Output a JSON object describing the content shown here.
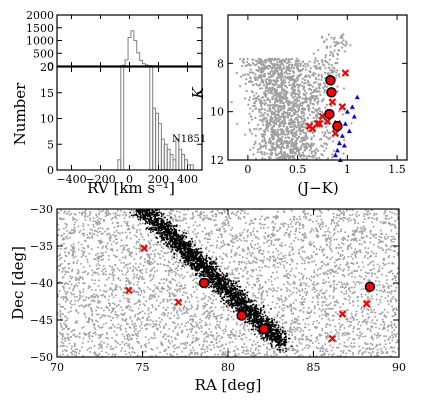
{
  "figure": {
    "colors": {
      "field_stars": "#a0a0a0",
      "stream_stars": "#000000",
      "candidates": "#ff0000",
      "selected_outline": "#000000",
      "dwarfs": "#0000ff",
      "histogram": "#808080"
    }
  },
  "chart_data": [
    {
      "id": "rv-histogram-top",
      "type": "bar",
      "xlim": [
        -500,
        500
      ],
      "ylim": [
        0,
        2000
      ],
      "yticks": [
        "0",
        "500",
        "1000",
        "1500",
        "2000"
      ],
      "bins_center": [
        -60,
        -40,
        -20,
        0,
        20,
        40,
        60,
        80,
        100,
        120,
        140,
        160,
        180,
        200
      ],
      "counts": [
        5,
        30,
        240,
        1120,
        1380,
        1000,
        520,
        220,
        90,
        40,
        20,
        10,
        5,
        2
      ]
    },
    {
      "id": "rv-histogram-bottom",
      "type": "bar",
      "xlabel": "RV [km s⁻¹]",
      "ylabel": "Number",
      "xlim": [
        -500,
        500
      ],
      "ylim": [
        0,
        20
      ],
      "xticks": [
        "−400",
        "−200",
        "0",
        "200",
        "400"
      ],
      "yticks": [
        "0",
        "5",
        "10",
        "15",
        "20"
      ],
      "annotation": "N1851",
      "bins_center": [
        -70,
        -50,
        150,
        170,
        190,
        210,
        230,
        250,
        270,
        290,
        310,
        330,
        350,
        370,
        390,
        410,
        430
      ],
      "counts": [
        2,
        20,
        20,
        12,
        11,
        9,
        6,
        5,
        4,
        3,
        2,
        6,
        4,
        3,
        2,
        1,
        1
      ]
    },
    {
      "id": "color-magnitude",
      "type": "scatter",
      "xlabel": "(J−K)",
      "ylabel": "K",
      "xlim": [
        -0.2,
        1.6
      ],
      "ylim": [
        12,
        6
      ],
      "xticks": [
        "0",
        "0.5",
        "1",
        "1.5"
      ],
      "yticks": [
        "8",
        "10",
        "12"
      ],
      "series": [
        {
          "points": [
            [
              0.98,
              8.4
            ],
            [
              0.85,
              9.6
            ],
            [
              0.75,
              10.2
            ],
            [
              0.72,
              10.5
            ],
            [
              0.8,
              10.4
            ],
            [
              0.62,
              10.6
            ],
            [
              0.9,
              10.5
            ],
            [
              0.95,
              9.8
            ],
            [
              0.88,
              10.9
            ],
            [
              0.7,
              10.5
            ],
            [
              0.65,
              10.7
            ]
          ]
        },
        {
          "points": [
            [
              0.83,
              8.7
            ],
            [
              0.84,
              9.2
            ],
            [
              0.82,
              10.1
            ],
            [
              0.9,
              10.6
            ]
          ]
        },
        {
          "points": [
            [
              1.0,
              10.0
            ],
            [
              1.05,
              9.8
            ],
            [
              0.98,
              10.5
            ],
            [
              0.95,
              11.0
            ],
            [
              0.92,
              11.3
            ],
            [
              0.9,
              11.6
            ],
            [
              1.1,
              9.4
            ],
            [
              1.02,
              10.8
            ],
            [
              0.88,
              11.8
            ],
            [
              0.93,
              12.0
            ],
            [
              1.07,
              10.2
            ],
            [
              0.97,
              11.4
            ]
          ]
        }
      ]
    },
    {
      "id": "sky-map",
      "type": "scatter",
      "xlabel": "RA [deg]",
      "ylabel": "Dec [deg]",
      "xlim": [
        70,
        90
      ],
      "ylim": [
        -50,
        -30
      ],
      "xticks": [
        "70",
        "75",
        "80",
        "85",
        "90"
      ],
      "yticks": [
        "−30",
        "−35",
        "−40",
        "−45",
        "−50"
      ],
      "series": [
        {
          "points": [
            [
              75.1,
              -35.3
            ],
            [
              74.2,
              -41.0
            ],
            [
              77.1,
              -42.6
            ],
            [
              86.1,
              -47.5
            ],
            [
              88.1,
              -42.8
            ],
            [
              86.7,
              -44.2
            ]
          ]
        },
        {
          "points": [
            [
              78.6,
              -40.0
            ],
            [
              80.8,
              -44.4
            ],
            [
              82.1,
              -46.2
            ],
            [
              88.3,
              -40.5
            ]
          ]
        }
      ]
    }
  ]
}
